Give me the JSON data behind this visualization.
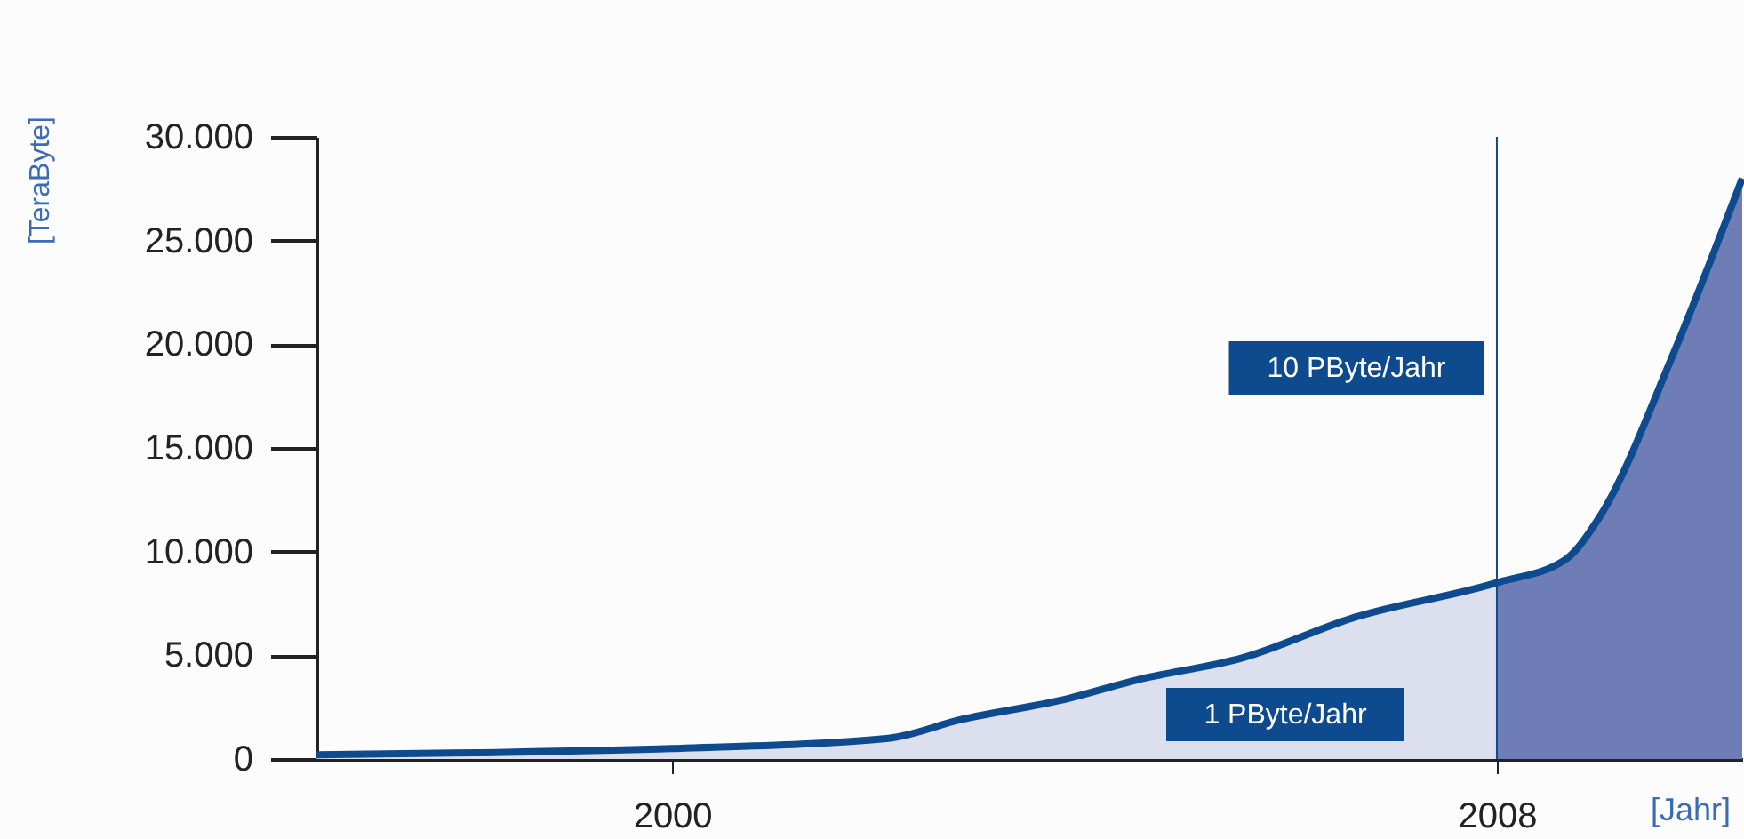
{
  "chart_data": {
    "type": "area",
    "xlabel": "[Jahr]",
    "ylabel": "[TeraByte]",
    "xlim": [
      1996.55,
      2010.38
    ],
    "xticks": [
      2000,
      2008
    ],
    "ylim": [
      0,
      30000
    ],
    "yticks": [
      {
        "value": 0,
        "label": "0"
      },
      {
        "value": 5000,
        "label": "5.000"
      },
      {
        "value": 10000,
        "label": "10.000"
      },
      {
        "value": 15000,
        "label": "15.000"
      },
      {
        "value": 20000,
        "label": "20.000"
      },
      {
        "value": 25000,
        "label": "25.000"
      },
      {
        "value": 30000,
        "label": "30.000"
      }
    ],
    "series": [
      {
        "color": "#dcdfee",
        "x": [
          1996.55,
          1998.1,
          2000,
          2002.1,
          2002.8,
          2003.83,
          2004.5,
          2005.55,
          2006.6,
          2008
        ],
        "values": [
          200,
          300,
          500,
          1000,
          1900,
          2900,
          3800,
          4900,
          6800,
          8500
        ]
      },
      {
        "color": "#6e7db6",
        "x": [
          2008,
          2008.66,
          2009,
          2009.7,
          2010.38
        ],
        "values": [
          8500,
          9600,
          11700,
          19400,
          28000
        ]
      },
      {
        "type": "line",
        "color": "#0e4a8e",
        "x": [
          1996.55,
          1998.1,
          2000,
          2002.1,
          2002.8,
          2003.83,
          2004.5,
          2005.55,
          2006.6,
          2008,
          2008.66,
          2009,
          2009.7,
          2010.38
        ],
        "values": [
          200,
          300,
          500,
          1000,
          1900,
          2900,
          3800,
          4900,
          6800,
          8500,
          9600,
          11700,
          19400,
          28000
        ]
      }
    ],
    "ref_lines": [
      {
        "axis": "x",
        "value": 2008,
        "color": "#0e4a8e"
      }
    ],
    "annotations": [
      "1 PByte/Jahr",
      "10 PByte/Jahr"
    ]
  }
}
